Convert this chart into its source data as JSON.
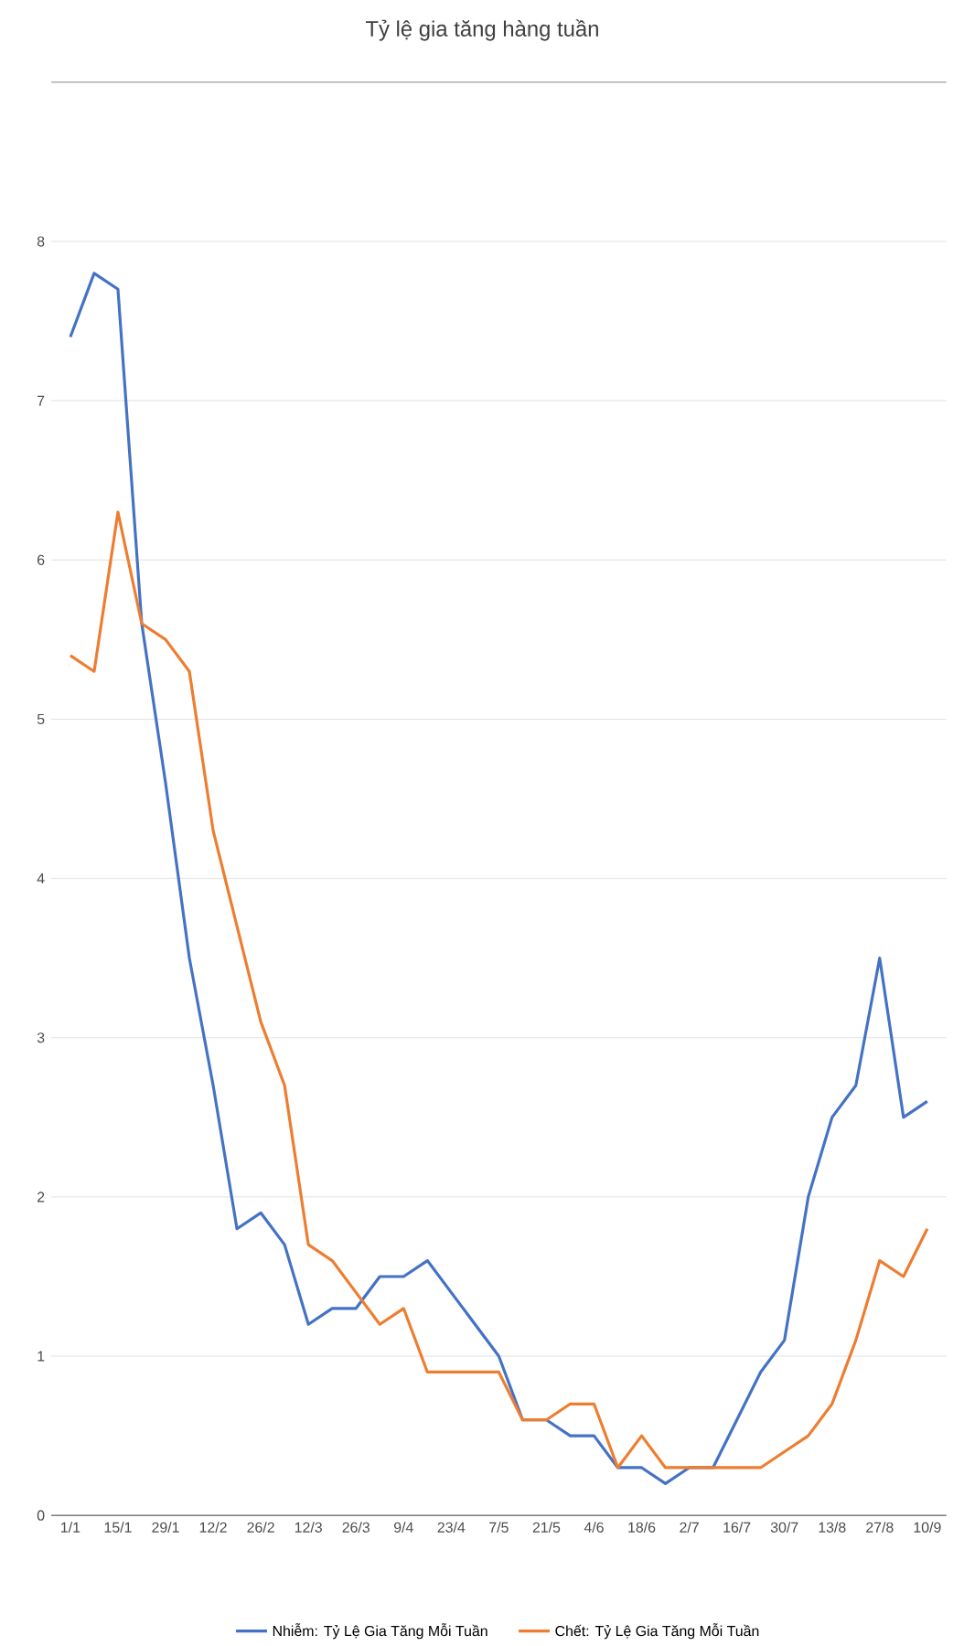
{
  "chart_data": {
    "type": "line",
    "title": "Tỷ lệ gia tăng hàng tuần",
    "categories": [
      "1/1",
      null,
      "15/1",
      null,
      "29/1",
      null,
      "12/2",
      null,
      "26/2",
      null,
      "12/3",
      null,
      "26/3",
      null,
      "9/4",
      null,
      "23/4",
      null,
      "7/5",
      null,
      "21/5",
      null,
      "4/6",
      null,
      "18/6",
      null,
      "2/7",
      null,
      "16/7",
      null,
      "30/7",
      null,
      "13/8",
      null,
      "27/8",
      null,
      "10/9"
    ],
    "series": [
      {
        "name": "Nhiễm: Tỷ Lệ Gia Tăng Mỗi Tuần",
        "color": "#4472c4",
        "values": [
          7.4,
          7.8,
          7.7,
          5.6,
          4.6,
          3.5,
          2.7,
          1.8,
          1.9,
          1.7,
          1.2,
          1.3,
          1.3,
          1.5,
          1.5,
          1.6,
          1.4,
          1.2,
          1.0,
          0.6,
          0.6,
          0.5,
          0.5,
          0.3,
          0.3,
          0.2,
          0.3,
          0.3,
          0.6,
          0.9,
          1.1,
          2.0,
          2.5,
          2.7,
          3.5,
          2.5,
          2.6
        ]
      },
      {
        "name": "Chết: Tỷ Lệ Gia Tăng Mỗi Tuần",
        "color": "#ed7d31",
        "values": [
          5.4,
          5.3,
          6.3,
          5.6,
          5.5,
          5.3,
          4.3,
          3.7,
          3.1,
          2.7,
          1.7,
          1.6,
          1.4,
          1.2,
          1.3,
          0.9,
          0.9,
          0.9,
          0.9,
          0.6,
          0.6,
          0.7,
          0.7,
          0.3,
          0.5,
          0.3,
          0.3,
          0.3,
          0.3,
          0.3,
          0.4,
          0.5,
          0.7,
          1.1,
          1.6,
          1.5,
          1.8
        ]
      }
    ],
    "ylim": [
      0,
      9
    ],
    "yticks": [
      0,
      1,
      2,
      3,
      4,
      5,
      6,
      7,
      8
    ],
    "grid": "y",
    "legend": "bottom",
    "marker": "none",
    "line_style": "solid"
  }
}
